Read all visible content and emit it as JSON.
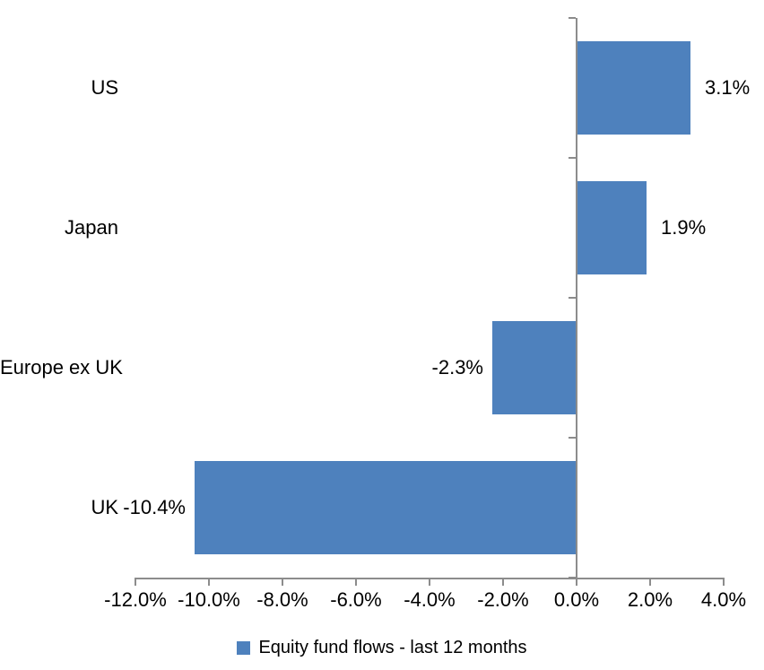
{
  "chart_data": {
    "type": "bar",
    "orientation": "horizontal",
    "title": "",
    "categories": [
      "US",
      "Japan",
      "Europe ex UK",
      "UK"
    ],
    "series": [
      {
        "name": "Equity fund flows - last 12 months",
        "values": [
          3.1,
          1.9,
          -2.3,
          -10.4
        ],
        "value_labels": [
          "3.1%",
          "1.9%",
          "-2.3%",
          "-10.4%"
        ],
        "color": "#4e81bd"
      }
    ],
    "xlim": [
      -12,
      4
    ],
    "x_tick_values": [
      -12,
      -10,
      -8,
      -6,
      -4,
      -2,
      0,
      2,
      4
    ],
    "x_tick_labels": [
      "-12.0%",
      "-10.0%",
      "-8.0%",
      "-6.0%",
      "-4.0%",
      "-2.0%",
      "0.0%",
      "2.0%",
      "4.0%"
    ],
    "grid": false,
    "legend_position": "bottom",
    "colors": {
      "bar": "#4e81bd",
      "axis": "#8c8c8c",
      "text": "#000000",
      "background": "#ffffff"
    }
  },
  "legend": {
    "label": "Equity fund flows - last 12 months"
  }
}
